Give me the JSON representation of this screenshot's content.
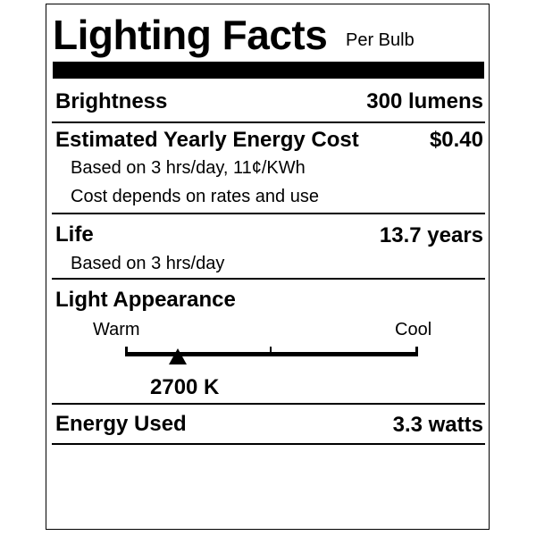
{
  "title": "Lighting Facts",
  "subtitle": "Per Bulb",
  "brightness": {
    "label": "Brightness",
    "value": "300 lumens"
  },
  "cost": {
    "label": "Estimated Yearly Energy Cost",
    "value": "$0.40",
    "note1": "Based on 3 hrs/day, 11¢/KWh",
    "note2": "Cost depends on rates and use"
  },
  "life": {
    "label": "Life",
    "value": "13.7 years",
    "note": "Based on 3 hrs/day"
  },
  "appearance": {
    "label": "Light Appearance",
    "warm": "Warm",
    "cool": "Cool",
    "value": "2700 K",
    "marker_fraction": 0.18
  },
  "energy": {
    "label": "Energy Used",
    "value": "3.3 watts"
  }
}
